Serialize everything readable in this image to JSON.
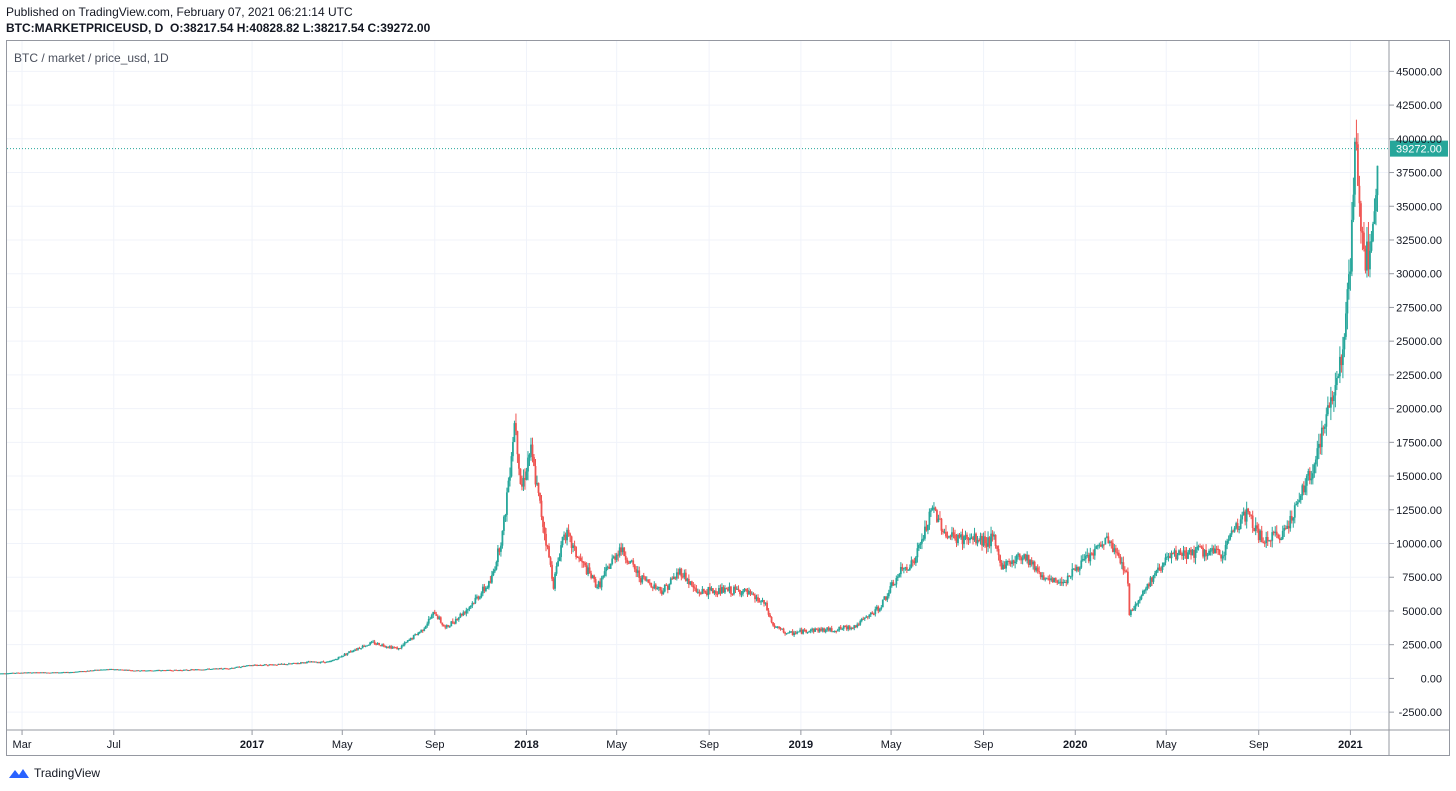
{
  "header": {
    "published": "Published on TradingView.com, February 07, 2021 06:21:14 UTC",
    "symbol": "BTC:MARKETPRICEUSD, D",
    "open": "O:38217.54",
    "high": "H:40828.82",
    "low": "L:38217.54",
    "close": "C:39272.00"
  },
  "legend": {
    "title": "BTC / market / price_usd, 1D"
  },
  "footer": {
    "brand": "TradingView"
  },
  "colors": {
    "up": "#26a69a",
    "down": "#ef5350",
    "grid": "#f0f3fa",
    "price_tag": "#26a69a",
    "axis_text": "#131722"
  },
  "chart_data": {
    "type": "candlestick",
    "series": [
      {
        "name": "BTC / market / price_usd, 1D"
      }
    ],
    "ylim": [
      -3750,
      47250
    ],
    "y_ticks": [
      "45000.00",
      "42500.00",
      "40000.00",
      "37500.00",
      "35000.00",
      "32500.00",
      "30000.00",
      "27500.00",
      "25000.00",
      "22500.00",
      "20000.00",
      "17500.00",
      "15000.00",
      "12500.00",
      "10000.00",
      "7500.00",
      "5000.00",
      "2500.00",
      "0.00",
      "-2500.00"
    ],
    "y_tick_values": [
      45000,
      42500,
      40000,
      37500,
      35000,
      32500,
      30000,
      27500,
      25000,
      22500,
      20000,
      17500,
      15000,
      12500,
      10000,
      7500,
      5000,
      2500,
      0,
      -2500
    ],
    "x_ticks": [
      {
        "label": "Mar",
        "date": "2016-03-01"
      },
      {
        "label": "Jul",
        "date": "2016-07-01"
      },
      {
        "label": "2017",
        "date": "2017-01-01"
      },
      {
        "label": "May",
        "date": "2017-05-01"
      },
      {
        "label": "Sep",
        "date": "2017-09-01"
      },
      {
        "label": "2018",
        "date": "2018-01-01"
      },
      {
        "label": "May",
        "date": "2018-05-01"
      },
      {
        "label": "Sep",
        "date": "2018-09-01"
      },
      {
        "label": "2019",
        "date": "2019-01-01"
      },
      {
        "label": "May",
        "date": "2019-05-01"
      },
      {
        "label": "Sep",
        "date": "2019-09-01"
      },
      {
        "label": "2020",
        "date": "2020-01-01"
      },
      {
        "label": "May",
        "date": "2020-05-01"
      },
      {
        "label": "Sep",
        "date": "2020-09-01"
      },
      {
        "label": "2021",
        "date": "2021-01-01"
      }
    ],
    "last_price": 39272.0,
    "last_price_label": "39272.00",
    "x": [
      "2016-02-01",
      "2016-03-01",
      "2016-05-01",
      "2016-06-15",
      "2016-07-01",
      "2016-08-01",
      "2016-10-01",
      "2016-12-01",
      "2017-01-01",
      "2017-02-15",
      "2017-03-15",
      "2017-04-15",
      "2017-05-15",
      "2017-06-10",
      "2017-07-15",
      "2017-08-15",
      "2017-09-01",
      "2017-09-15",
      "2017-10-15",
      "2017-11-15",
      "2017-12-01",
      "2017-12-17",
      "2017-12-25",
      "2018-01-06",
      "2018-02-06",
      "2018-02-20",
      "2018-03-10",
      "2018-04-06",
      "2018-05-05",
      "2018-06-01",
      "2018-07-01",
      "2018-07-25",
      "2018-08-15",
      "2018-09-15",
      "2018-10-15",
      "2018-11-14",
      "2018-11-25",
      "2018-12-15",
      "2019-01-15",
      "2019-02-15",
      "2019-03-15",
      "2019-04-15",
      "2019-05-15",
      "2019-06-01",
      "2019-06-26",
      "2019-07-15",
      "2019-08-15",
      "2019-09-15",
      "2019-09-25",
      "2019-10-25",
      "2019-11-25",
      "2019-12-15",
      "2020-01-15",
      "2020-02-13",
      "2020-03-10",
      "2020-03-13",
      "2020-04-05",
      "2020-04-30",
      "2020-05-20",
      "2020-06-15",
      "2020-07-15",
      "2020-07-28",
      "2020-08-17",
      "2020-09-05",
      "2020-10-01",
      "2020-10-21",
      "2020-11-10",
      "2020-12-01",
      "2020-12-17",
      "2020-12-27",
      "2021-01-03",
      "2021-01-08",
      "2021-01-12",
      "2021-01-22",
      "2021-01-27",
      "2021-02-04",
      "2021-02-07"
    ],
    "y": [
      370,
      430,
      450,
      650,
      680,
      580,
      620,
      750,
      980,
      1050,
      1200,
      1230,
      2100,
      2650,
      2200,
      3600,
      4900,
      3700,
      5200,
      7200,
      11000,
      19500,
      14000,
      17000,
      7000,
      11000,
      9000,
      6800,
      9700,
      7500,
      6500,
      8000,
      6400,
      6500,
      6500,
      5500,
      3900,
      3300,
      3600,
      3600,
      3900,
      5200,
      8000,
      8700,
      12600,
      10500,
      10300,
      10200,
      8300,
      9200,
      7200,
      7200,
      8800,
      10300,
      7900,
      4800,
      6800,
      8800,
      9200,
      9400,
      9200,
      11000,
      12300,
      10200,
      10600,
      12800,
      15300,
      19500,
      23000,
      27000,
      33000,
      40000,
      35000,
      31000,
      30500,
      37000,
      39272
    ]
  }
}
